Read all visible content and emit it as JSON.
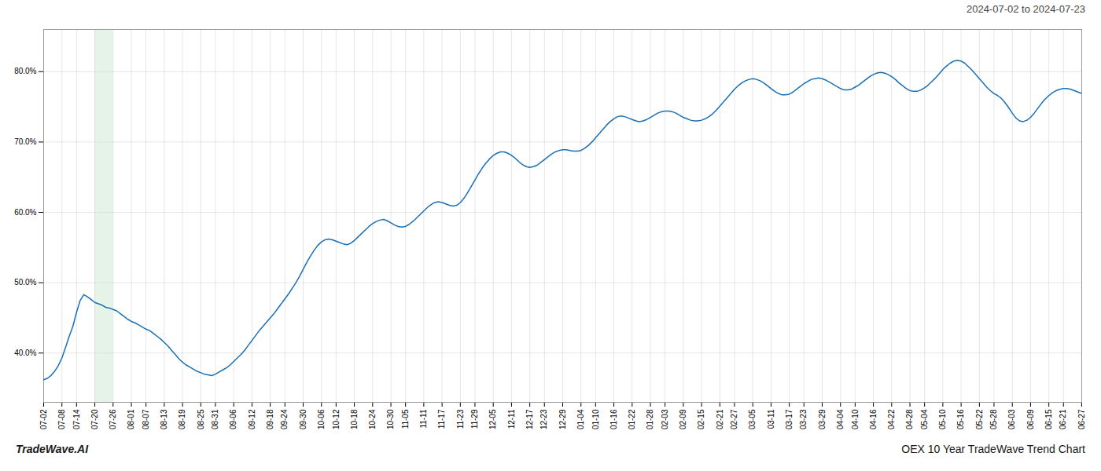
{
  "chart_data": {
    "type": "line",
    "title": "2024-07-02 to 2024-07-23",
    "annotations": [
      "TradeWave.AI",
      "OEX 10 Year TradeWave Trend Chart"
    ],
    "color": "#1a6fb5",
    "grid": true,
    "ylim": [
      0.33,
      0.86
    ],
    "yticks": [
      {
        "value": 0.4,
        "label": "40.0%"
      },
      {
        "value": 0.5,
        "label": "50.0%"
      },
      {
        "value": 0.6,
        "label": "60.0%"
      },
      {
        "value": 0.7,
        "label": "70.0%"
      },
      {
        "value": 0.8,
        "label": "80.0%"
      }
    ],
    "shade": {
      "from": "07-20",
      "to": "07-26",
      "color": "#c8e6c9"
    },
    "categories": [
      "07-02",
      null,
      null,
      null,
      null,
      "07-08",
      null,
      null,
      null,
      "07-14",
      null,
      null,
      null,
      null,
      "07-20",
      null,
      null,
      null,
      null,
      "07-26",
      null,
      null,
      null,
      null,
      "08-01",
      null,
      null,
      null,
      "08-07",
      null,
      null,
      null,
      null,
      "08-13",
      null,
      null,
      null,
      null,
      "08-19",
      null,
      null,
      null,
      null,
      "08-25",
      null,
      null,
      null,
      "08-31",
      null,
      null,
      null,
      null,
      "09-06",
      null,
      null,
      null,
      null,
      "09-12",
      null,
      null,
      null,
      null,
      "09-18",
      null,
      null,
      null,
      "09-24",
      null,
      null,
      null,
      null,
      "09-30",
      null,
      null,
      null,
      null,
      "10-06",
      null,
      null,
      null,
      "10-12",
      null,
      null,
      null,
      null,
      "10-18",
      null,
      null,
      null,
      null,
      "10-24",
      null,
      null,
      null,
      null,
      "10-30",
      null,
      null,
      null,
      "11-05",
      null,
      null,
      null,
      null,
      "11-11",
      null,
      null,
      null,
      null,
      "11-17",
      null,
      null,
      null,
      null,
      "11-23",
      null,
      null,
      null,
      "11-29",
      null,
      null,
      null,
      null,
      "12-05",
      null,
      null,
      null,
      null,
      "12-11",
      null,
      null,
      null,
      null,
      "12-17",
      null,
      null,
      null,
      "12-23",
      null,
      null,
      null,
      null,
      "12-29",
      null,
      null,
      null,
      null,
      "01-04",
      null,
      null,
      null,
      "01-10",
      null,
      null,
      null,
      null,
      "01-16",
      null,
      null,
      null,
      null,
      "01-22",
      null,
      null,
      null,
      null,
      "01-28",
      null,
      null,
      null,
      "02-03",
      null,
      null,
      null,
      null,
      "02-09",
      null,
      null,
      null,
      null,
      "02-15",
      null,
      null,
      null,
      null,
      "02-21",
      null,
      null,
      null,
      "02-27",
      null,
      null,
      null,
      null,
      "03-05",
      null,
      null,
      null,
      null,
      "03-11",
      null,
      null,
      null,
      null,
      "03-17",
      null,
      null,
      null,
      "03-23",
      null,
      null,
      null,
      null,
      "03-29",
      null,
      null,
      null,
      null,
      "04-04",
      null,
      null,
      null,
      "04-10",
      null,
      null,
      null,
      null,
      "04-16",
      null,
      null,
      null,
      null,
      "04-22",
      null,
      null,
      null,
      null,
      "04-28",
      null,
      null,
      null,
      "05-04",
      null,
      null,
      null,
      null,
      "05-10",
      null,
      null,
      null,
      null,
      "05-16",
      null,
      null,
      null,
      null,
      "05-22",
      null,
      null,
      null,
      "05-28",
      null,
      null,
      null,
      null,
      "06-03",
      null,
      null,
      null,
      null,
      "06-09",
      null,
      null,
      null,
      null,
      "06-15",
      null,
      null,
      null,
      "06-21",
      null,
      null,
      null,
      null,
      "06-27"
    ],
    "values": [
      0.362,
      0.364,
      0.368,
      0.374,
      0.382,
      0.393,
      0.408,
      0.424,
      0.438,
      0.458,
      0.475,
      0.483,
      0.48,
      0.476,
      0.472,
      0.47,
      0.468,
      0.465,
      0.464,
      0.462,
      0.46,
      0.456,
      0.452,
      0.448,
      0.445,
      0.443,
      0.44,
      0.437,
      0.434,
      0.432,
      0.428,
      0.424,
      0.42,
      0.415,
      0.41,
      0.404,
      0.398,
      0.392,
      0.387,
      0.383,
      0.38,
      0.377,
      0.374,
      0.372,
      0.37,
      0.369,
      0.368,
      0.37,
      0.373,
      0.376,
      0.379,
      0.383,
      0.388,
      0.393,
      0.398,
      0.404,
      0.411,
      0.418,
      0.425,
      0.432,
      0.438,
      0.444,
      0.45,
      0.456,
      0.463,
      0.47,
      0.477,
      0.484,
      0.492,
      0.5,
      0.509,
      0.519,
      0.529,
      0.538,
      0.546,
      0.553,
      0.558,
      0.561,
      0.562,
      0.561,
      0.559,
      0.557,
      0.555,
      0.554,
      0.556,
      0.56,
      0.565,
      0.57,
      0.575,
      0.58,
      0.584,
      0.587,
      0.589,
      0.59,
      0.588,
      0.585,
      0.582,
      0.58,
      0.579,
      0.58,
      0.583,
      0.587,
      0.592,
      0.597,
      0.602,
      0.607,
      0.611,
      0.614,
      0.615,
      0.614,
      0.612,
      0.61,
      0.609,
      0.61,
      0.614,
      0.62,
      0.628,
      0.637,
      0.646,
      0.655,
      0.663,
      0.67,
      0.676,
      0.681,
      0.684,
      0.686,
      0.686,
      0.684,
      0.681,
      0.677,
      0.672,
      0.668,
      0.665,
      0.664,
      0.665,
      0.667,
      0.671,
      0.675,
      0.679,
      0.683,
      0.686,
      0.688,
      0.689,
      0.689,
      0.688,
      0.687,
      0.687,
      0.688,
      0.691,
      0.695,
      0.7,
      0.706,
      0.712,
      0.718,
      0.724,
      0.729,
      0.733,
      0.736,
      0.737,
      0.736,
      0.734,
      0.732,
      0.73,
      0.729,
      0.73,
      0.732,
      0.735,
      0.738,
      0.741,
      0.743,
      0.744,
      0.744,
      0.743,
      0.741,
      0.738,
      0.735,
      0.733,
      0.731,
      0.73,
      0.73,
      0.731,
      0.733,
      0.736,
      0.74,
      0.745,
      0.751,
      0.757,
      0.763,
      0.769,
      0.775,
      0.78,
      0.784,
      0.787,
      0.789,
      0.79,
      0.789,
      0.787,
      0.784,
      0.78,
      0.776,
      0.772,
      0.769,
      0.767,
      0.767,
      0.768,
      0.771,
      0.775,
      0.779,
      0.783,
      0.786,
      0.789,
      0.79,
      0.791,
      0.79,
      0.788,
      0.785,
      0.782,
      0.779,
      0.776,
      0.774,
      0.774,
      0.775,
      0.778,
      0.781,
      0.785,
      0.789,
      0.793,
      0.796,
      0.798,
      0.799,
      0.798,
      0.796,
      0.793,
      0.789,
      0.784,
      0.78,
      0.776,
      0.773,
      0.772,
      0.772,
      0.774,
      0.777,
      0.781,
      0.786,
      0.791,
      0.797,
      0.803,
      0.808,
      0.812,
      0.815,
      0.816,
      0.815,
      0.812,
      0.807,
      0.802,
      0.796,
      0.79,
      0.784,
      0.778,
      0.773,
      0.769,
      0.766,
      0.762,
      0.756,
      0.749,
      0.741,
      0.734,
      0.73,
      0.729,
      0.731,
      0.735,
      0.741,
      0.748,
      0.755,
      0.761,
      0.766,
      0.77,
      0.773,
      0.775,
      0.776,
      0.776,
      0.775,
      0.773,
      0.771,
      0.769
    ]
  }
}
